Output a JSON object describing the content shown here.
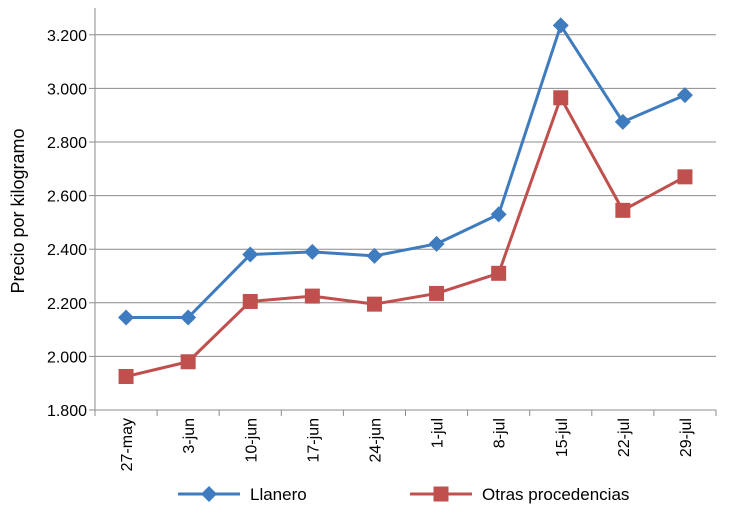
{
  "chart_data": {
    "type": "line",
    "title": "",
    "xlabel": "",
    "ylabel": "Precio por kilogramo",
    "categories": [
      "27-may",
      "3-jun",
      "10-jun",
      "17-jun",
      "24-jun",
      "1-jul",
      "8-jul",
      "15-jul",
      "22-jul",
      "29-jul"
    ],
    "y_ticks": [
      "1.800",
      "2.000",
      "2.200",
      "2.400",
      "2.600",
      "2.800",
      "3.000",
      "3.200"
    ],
    "ylim": [
      1800,
      3300
    ],
    "grid": true,
    "legend_position": "bottom",
    "series": [
      {
        "name": "Llanero",
        "color": "#3f7cbf",
        "marker": "diamond",
        "values": [
          2145,
          2145,
          2380,
          2390,
          2375,
          2420,
          2530,
          3235,
          2875,
          2975
        ]
      },
      {
        "name": "Otras procedencias",
        "color": "#c0504d",
        "marker": "square",
        "values": [
          1925,
          1980,
          2205,
          2225,
          2195,
          2235,
          2310,
          2965,
          2545,
          2670
        ]
      }
    ]
  }
}
